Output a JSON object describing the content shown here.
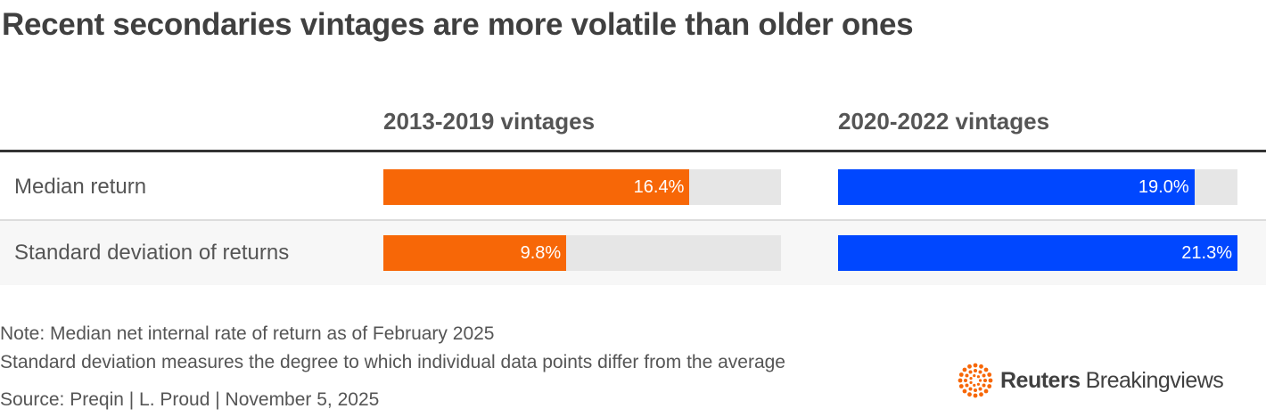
{
  "title": "Recent secondaries vintages are more volatile than older ones",
  "colors": {
    "series_1": "#f76707",
    "series_2": "#0047ff",
    "track": "#e6e6e6"
  },
  "chart_data": {
    "type": "bar",
    "orientation": "horizontal",
    "categories": [
      "Median return",
      "Standard deviation of returns"
    ],
    "series": [
      {
        "name": "2013-2019 vintages",
        "values": [
          16.4,
          9.8
        ],
        "labels": [
          "16.4%",
          "9.8%"
        ]
      },
      {
        "name": "2020-2022 vintages",
        "values": [
          19.0,
          21.3
        ],
        "labels": [
          "19.0%",
          "21.3%"
        ]
      }
    ],
    "xlim": [
      0,
      21.3
    ],
    "unit": "%"
  },
  "notes": {
    "line1": "Note: Median net internal rate of return as of February 2025",
    "line2": "Standard deviation measures the degree to which individual data points differ from the average",
    "source": "Source: Preqin | L. Proud | November 5, 2025"
  },
  "logo": {
    "bold": "Reuters",
    "regular": "Breakingviews",
    "icon": "reuters-dot-ring-icon"
  }
}
